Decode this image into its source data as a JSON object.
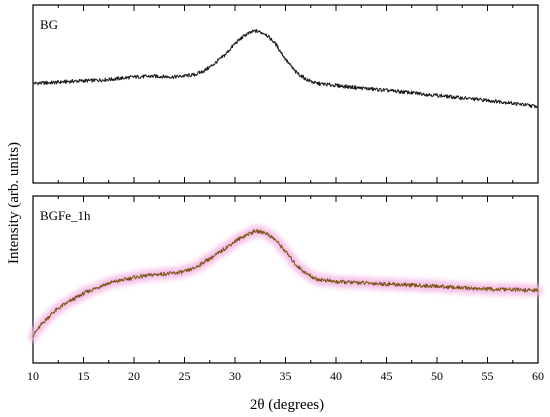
{
  "chart_data": {
    "type": "line",
    "xlabel": "2θ (degrees)",
    "ylabel": "Intensity (arb. units)",
    "xlim": [
      10,
      60
    ],
    "x_ticks": [
      10,
      15,
      20,
      25,
      30,
      35,
      40,
      45,
      50,
      55,
      60
    ],
    "y_ticks_shown": false,
    "legend": "none",
    "grid": false,
    "panels": [
      {
        "label": "BG",
        "line_color": "#1a1a1a",
        "glow_color": "",
        "ylim": [
          0,
          100
        ],
        "points": [
          [
            10,
            54
          ],
          [
            12,
            54.5
          ],
          [
            14,
            55.5
          ],
          [
            16,
            56
          ],
          [
            18,
            57
          ],
          [
            20,
            58.5
          ],
          [
            22,
            59
          ],
          [
            24,
            58.5
          ],
          [
            26,
            60
          ],
          [
            27,
            63
          ],
          [
            28,
            68
          ],
          [
            29,
            74
          ],
          [
            30,
            82
          ],
          [
            31,
            88
          ],
          [
            32,
            91
          ],
          [
            33,
            89
          ],
          [
            34,
            82
          ],
          [
            35,
            71
          ],
          [
            36,
            62
          ],
          [
            37,
            57
          ],
          [
            38,
            54
          ],
          [
            40,
            52.5
          ],
          [
            42,
            51
          ],
          [
            45,
            49
          ],
          [
            48,
            47
          ],
          [
            50,
            45.5
          ],
          [
            52,
            44
          ],
          [
            55,
            42
          ],
          [
            57,
            40.5
          ],
          [
            58,
            39.5
          ],
          [
            60,
            37.5
          ]
        ]
      },
      {
        "label": "BGFe_1h",
        "line_color": "#7a5514",
        "glow_color": "#f4b8e4",
        "ylim": [
          0,
          100
        ],
        "points": [
          [
            10,
            10
          ],
          [
            11,
            19
          ],
          [
            12,
            26
          ],
          [
            13,
            31
          ],
          [
            14,
            35
          ],
          [
            15,
            39
          ],
          [
            16,
            42
          ],
          [
            17,
            45
          ],
          [
            18,
            47
          ],
          [
            20,
            50
          ],
          [
            22,
            52
          ],
          [
            24,
            53
          ],
          [
            25,
            54
          ],
          [
            26,
            56.5
          ],
          [
            27,
            61
          ],
          [
            28,
            65
          ],
          [
            29,
            70
          ],
          [
            30,
            75
          ],
          [
            31,
            79
          ],
          [
            32,
            82
          ],
          [
            33,
            81
          ],
          [
            34,
            76
          ],
          [
            35,
            68
          ],
          [
            36,
            59
          ],
          [
            37,
            53
          ],
          [
            38,
            49
          ],
          [
            40,
            47
          ],
          [
            42,
            46.5
          ],
          [
            45,
            45.5
          ],
          [
            48,
            44.5
          ],
          [
            50,
            44
          ],
          [
            52,
            43
          ],
          [
            55,
            42
          ],
          [
            58,
            41.5
          ],
          [
            60,
            41
          ]
        ]
      }
    ]
  }
}
